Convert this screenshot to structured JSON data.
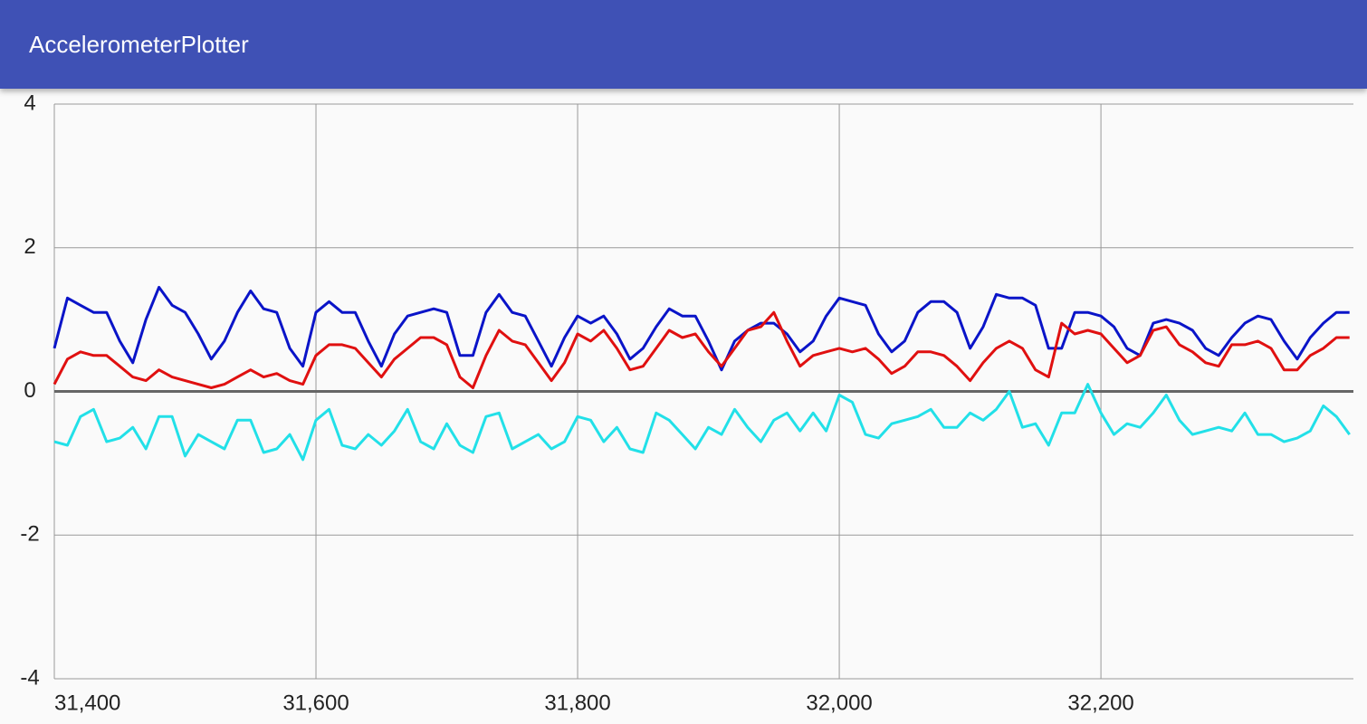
{
  "app_bar": {
    "title": "AccelerometerPlotter"
  },
  "chart_data": {
    "type": "line",
    "x": [
      31400,
      31410,
      31420,
      31430,
      31440,
      31450,
      31460,
      31470,
      31480,
      31490,
      31500,
      31510,
      31520,
      31530,
      31540,
      31550,
      31560,
      31570,
      31580,
      31590,
      31600,
      31610,
      31620,
      31630,
      31640,
      31650,
      31660,
      31670,
      31680,
      31690,
      31700,
      31710,
      31720,
      31730,
      31740,
      31750,
      31760,
      31770,
      31780,
      31790,
      31800,
      31810,
      31820,
      31830,
      31840,
      31850,
      31860,
      31870,
      31880,
      31890,
      31900,
      31910,
      31920,
      31930,
      31940,
      31950,
      31960,
      31970,
      31980,
      31990,
      32000,
      32010,
      32020,
      32030,
      32040,
      32050,
      32060,
      32070,
      32080,
      32090,
      32100,
      32110,
      32120,
      32130,
      32140,
      32150,
      32160,
      32170,
      32180,
      32190,
      32200,
      32210,
      32220,
      32230,
      32240,
      32250,
      32260,
      32270,
      32280,
      32290,
      32300,
      32310,
      32320,
      32330,
      32340,
      32350,
      32360,
      32370,
      32380,
      32390
    ],
    "series": [
      {
        "color": "#0a14c8",
        "values": [
          0.6,
          1.3,
          1.2,
          1.1,
          1.1,
          0.7,
          0.4,
          1.0,
          1.45,
          1.2,
          1.1,
          0.8,
          0.45,
          0.7,
          1.1,
          1.4,
          1.15,
          1.1,
          0.6,
          0.35,
          1.1,
          1.25,
          1.1,
          1.1,
          0.7,
          0.35,
          0.8,
          1.05,
          1.1,
          1.15,
          1.1,
          0.5,
          0.5,
          1.1,
          1.35,
          1.1,
          1.05,
          0.7,
          0.35,
          0.75,
          1.05,
          0.95,
          1.05,
          0.8,
          0.45,
          0.6,
          0.9,
          1.15,
          1.05,
          1.05,
          0.7,
          0.3,
          0.7,
          0.85,
          0.95,
          0.95,
          0.8,
          0.55,
          0.7,
          1.05,
          1.3,
          1.25,
          1.2,
          0.8,
          0.55,
          0.7,
          1.1,
          1.25,
          1.25,
          1.1,
          0.6,
          0.9,
          1.35,
          1.3,
          1.3,
          1.2,
          0.6,
          0.6,
          1.1,
          1.1,
          1.05,
          0.9,
          0.6,
          0.5,
          0.95,
          1.0,
          0.95,
          0.85,
          0.6,
          0.5,
          0.75,
          0.95,
          1.05,
          1.0,
          0.7,
          0.45,
          0.75,
          0.95,
          1.1,
          1.1
        ]
      },
      {
        "color": "#e01010",
        "values": [
          0.1,
          0.45,
          0.55,
          0.5,
          0.5,
          0.35,
          0.2,
          0.15,
          0.3,
          0.2,
          0.15,
          0.1,
          0.05,
          0.1,
          0.2,
          0.3,
          0.2,
          0.25,
          0.15,
          0.1,
          0.5,
          0.65,
          0.65,
          0.6,
          0.4,
          0.2,
          0.45,
          0.6,
          0.75,
          0.75,
          0.65,
          0.2,
          0.05,
          0.5,
          0.85,
          0.7,
          0.65,
          0.4,
          0.15,
          0.4,
          0.8,
          0.7,
          0.85,
          0.6,
          0.3,
          0.35,
          0.6,
          0.85,
          0.75,
          0.8,
          0.55,
          0.35,
          0.6,
          0.85,
          0.9,
          1.1,
          0.7,
          0.35,
          0.5,
          0.55,
          0.6,
          0.55,
          0.6,
          0.45,
          0.25,
          0.35,
          0.55,
          0.55,
          0.5,
          0.35,
          0.15,
          0.4,
          0.6,
          0.7,
          0.6,
          0.3,
          0.2,
          0.95,
          0.8,
          0.85,
          0.8,
          0.6,
          0.4,
          0.5,
          0.85,
          0.9,
          0.65,
          0.55,
          0.4,
          0.35,
          0.65,
          0.65,
          0.7,
          0.6,
          0.3,
          0.3,
          0.5,
          0.6,
          0.75,
          0.75
        ]
      },
      {
        "color": "#22e0e8",
        "values": [
          -0.7,
          -0.75,
          -0.35,
          -0.25,
          -0.7,
          -0.65,
          -0.5,
          -0.8,
          -0.35,
          -0.35,
          -0.9,
          -0.6,
          -0.7,
          -0.8,
          -0.4,
          -0.4,
          -0.85,
          -0.8,
          -0.6,
          -0.95,
          -0.4,
          -0.25,
          -0.75,
          -0.8,
          -0.6,
          -0.75,
          -0.55,
          -0.25,
          -0.7,
          -0.8,
          -0.45,
          -0.75,
          -0.85,
          -0.35,
          -0.3,
          -0.8,
          -0.7,
          -0.6,
          -0.8,
          -0.7,
          -0.35,
          -0.4,
          -0.7,
          -0.5,
          -0.8,
          -0.85,
          -0.3,
          -0.4,
          -0.6,
          -0.8,
          -0.5,
          -0.6,
          -0.25,
          -0.5,
          -0.7,
          -0.4,
          -0.3,
          -0.55,
          -0.3,
          -0.55,
          -0.05,
          -0.15,
          -0.6,
          -0.65,
          -0.45,
          -0.4,
          -0.35,
          -0.25,
          -0.5,
          -0.5,
          -0.3,
          -0.4,
          -0.25,
          0.0,
          -0.5,
          -0.45,
          -0.75,
          -0.3,
          -0.3,
          0.1,
          -0.3,
          -0.6,
          -0.45,
          -0.5,
          -0.3,
          -0.05,
          -0.4,
          -0.6,
          -0.55,
          -0.5,
          -0.55,
          -0.3,
          -0.6,
          -0.6,
          -0.7,
          -0.65,
          -0.55,
          -0.2,
          -0.35,
          -0.6
        ]
      }
    ],
    "xlim": [
      31400,
      32393
    ],
    "ylim": [
      -4,
      4
    ],
    "xticks": [
      {
        "value": 31400,
        "label": "31,400"
      },
      {
        "value": 31600,
        "label": "31,600"
      },
      {
        "value": 31800,
        "label": "31,800"
      },
      {
        "value": 32000,
        "label": "32,000"
      },
      {
        "value": 32200,
        "label": "32,200"
      }
    ],
    "yticks": [
      -4,
      -2,
      0,
      2,
      4
    ],
    "grid": true
  }
}
